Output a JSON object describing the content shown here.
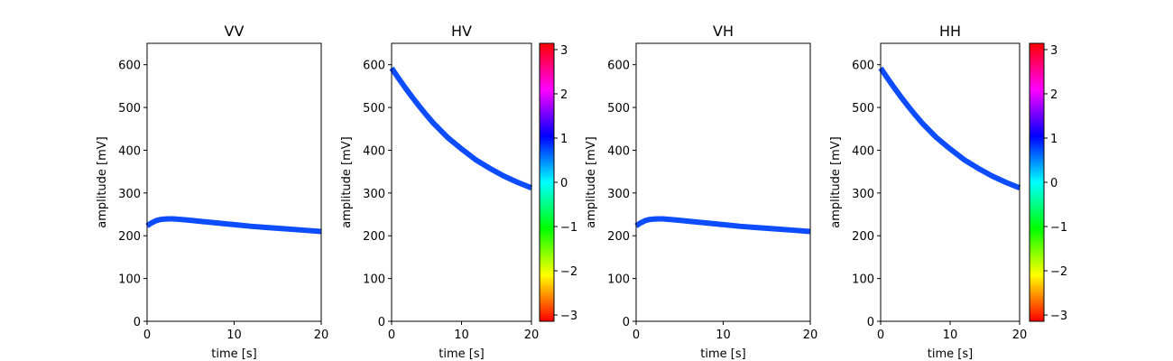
{
  "chart_data": [
    {
      "type": "line",
      "title": "VV",
      "xlabel": "time [s]",
      "ylabel": "amplitude [mV]",
      "xlim": [
        0,
        20
      ],
      "ylim": [
        0,
        650
      ],
      "xticks": [
        0,
        10,
        20
      ],
      "yticks": [
        0,
        100,
        200,
        300,
        400,
        500,
        600
      ],
      "grid": false,
      "series": [
        {
          "color": "#0d4dff",
          "x": [
            0,
            0.5,
            1,
            1.5,
            2,
            2.5,
            3,
            4,
            5,
            6,
            8,
            10,
            12,
            14,
            16,
            18,
            20
          ],
          "y": [
            223,
            230,
            235,
            238,
            239,
            239.5,
            239.5,
            238,
            236,
            234,
            230,
            226,
            222,
            219,
            216,
            213,
            210
          ]
        }
      ],
      "colorbar": null
    },
    {
      "type": "line",
      "title": "HV",
      "xlabel": "time [s]",
      "ylabel": "amplitude [mV]",
      "xlim": [
        0,
        20
      ],
      "ylim": [
        0,
        650
      ],
      "xticks": [
        0,
        10,
        20
      ],
      "yticks": [
        0,
        100,
        200,
        300,
        400,
        500,
        600
      ],
      "grid": false,
      "series": [
        {
          "color": "#0d4dff",
          "x": [
            0,
            1,
            2,
            3,
            4,
            5,
            6,
            8,
            10,
            12,
            14,
            16,
            18,
            20
          ],
          "y": [
            592,
            568,
            545,
            523,
            502,
            482,
            463,
            430,
            403,
            378,
            358,
            340,
            325,
            312
          ]
        }
      ],
      "colorbar": {
        "ticks": [
          3,
          2,
          1,
          0,
          -1,
          -2,
          -3
        ],
        "range": [
          -3.1416,
          3.1416
        ],
        "cmap": "hsv"
      }
    },
    {
      "type": "line",
      "title": "VH",
      "xlabel": "time [s]",
      "ylabel": "amplitude [mV]",
      "xlim": [
        0,
        20
      ],
      "ylim": [
        0,
        650
      ],
      "xticks": [
        0,
        10,
        20
      ],
      "yticks": [
        0,
        100,
        200,
        300,
        400,
        500,
        600
      ],
      "grid": false,
      "series": [
        {
          "color": "#0d4dff",
          "x": [
            0,
            0.5,
            1,
            1.5,
            2,
            2.5,
            3,
            4,
            5,
            6,
            8,
            10,
            12,
            14,
            16,
            18,
            20
          ],
          "y": [
            223,
            230,
            235,
            238,
            239,
            239.5,
            239.5,
            238,
            236,
            234,
            230,
            226,
            222,
            219,
            216,
            213,
            210
          ]
        }
      ],
      "colorbar": null
    },
    {
      "type": "line",
      "title": "HH",
      "xlabel": "time [s]",
      "ylabel": "amplitude [mV]",
      "xlim": [
        0,
        20
      ],
      "ylim": [
        0,
        650
      ],
      "xticks": [
        0,
        10,
        20
      ],
      "yticks": [
        0,
        100,
        200,
        300,
        400,
        500,
        600
      ],
      "grid": false,
      "series": [
        {
          "color": "#0d4dff",
          "x": [
            0,
            1,
            2,
            3,
            4,
            5,
            6,
            8,
            10,
            12,
            14,
            16,
            18,
            20
          ],
          "y": [
            592,
            568,
            545,
            523,
            502,
            482,
            463,
            430,
            403,
            378,
            358,
            340,
            325,
            312
          ]
        }
      ],
      "colorbar": {
        "ticks": [
          3,
          2,
          1,
          0,
          -1,
          -2,
          -3
        ],
        "range": [
          -3.1416,
          3.1416
        ],
        "cmap": "hsv"
      }
    }
  ]
}
